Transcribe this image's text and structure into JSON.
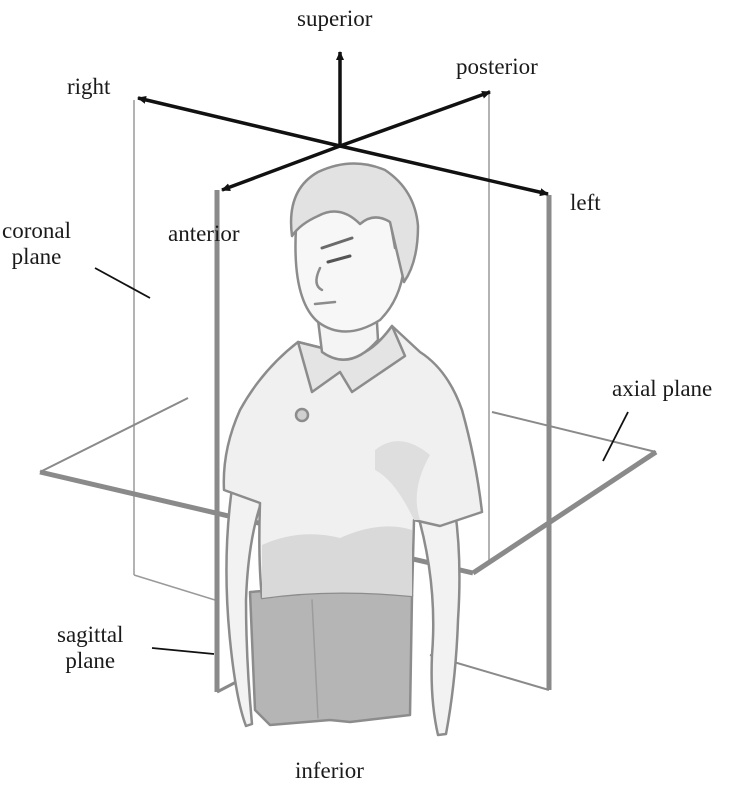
{
  "labels": {
    "superior": "superior",
    "inferior": "inferior",
    "right": "right",
    "left": "left",
    "anterior": "anterior",
    "posterior": "posterior",
    "coronal_plane": [
      "coronal",
      "plane"
    ],
    "axial_plane": "axial plane",
    "sagittal_plane": [
      "sagittal",
      "plane"
    ]
  },
  "colors": {
    "axis_arrows": "#111111",
    "plane_edge": "#8a8a8a",
    "plane_edge_thin": "#9a9a9a",
    "figure_outline": "#8c8c8c",
    "skin": "#f2f2f2",
    "shirt_shadow": "#d9d9d9",
    "pants": "#b5b5b5"
  }
}
